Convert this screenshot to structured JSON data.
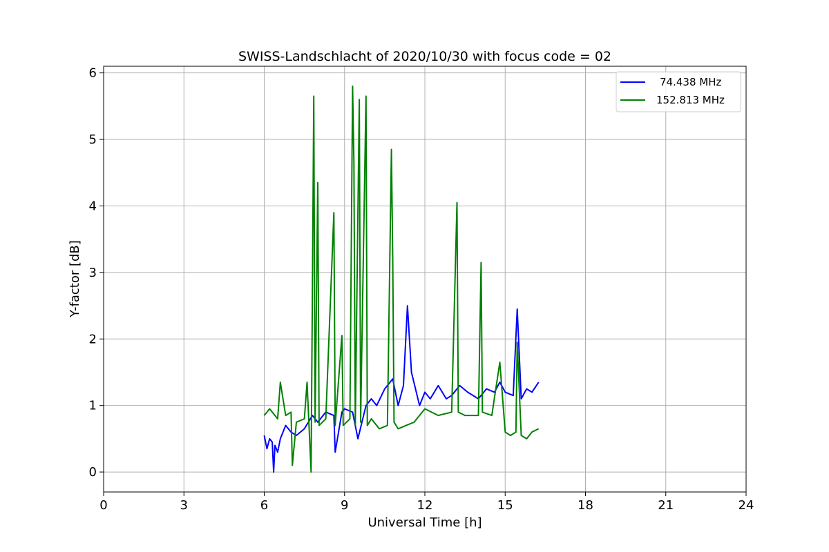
{
  "chart_data": {
    "type": "line",
    "title": "SWISS-Landschlacht of 2020/10/30 with focus code = 02",
    "xlabel": "Universal Time [h]",
    "ylabel": "Y-factor [dB]",
    "xlim": [
      0,
      24
    ],
    "ylim": [
      -0.3,
      6.1
    ],
    "xticks": [
      0,
      3,
      6,
      9,
      12,
      15,
      18,
      21,
      24
    ],
    "yticks": [
      0,
      1,
      2,
      3,
      4,
      5,
      6
    ],
    "grid": true,
    "legend_position": "top-right",
    "series": [
      {
        "name": "74.438 MHz",
        "color": "#0000ff",
        "x": [
          6.0,
          6.1,
          6.2,
          6.3,
          6.35,
          6.4,
          6.5,
          6.6,
          6.8,
          7.0,
          7.2,
          7.5,
          7.8,
          8.0,
          8.3,
          8.6,
          8.65,
          8.9,
          9.0,
          9.3,
          9.5,
          9.8,
          10.0,
          10.2,
          10.5,
          10.8,
          11.0,
          11.2,
          11.35,
          11.5,
          11.8,
          12.0,
          12.2,
          12.5,
          12.8,
          13.0,
          13.3,
          13.6,
          14.0,
          14.3,
          14.6,
          14.8,
          15.0,
          15.3,
          15.45,
          15.6,
          15.8,
          16.0,
          16.25
        ],
        "values": [
          0.55,
          0.35,
          0.5,
          0.45,
          0.0,
          0.4,
          0.3,
          0.5,
          0.7,
          0.6,
          0.55,
          0.65,
          0.85,
          0.75,
          0.9,
          0.85,
          0.3,
          0.9,
          0.95,
          0.9,
          0.5,
          1.0,
          1.1,
          1.0,
          1.25,
          1.4,
          1.0,
          1.3,
          2.5,
          1.5,
          1.0,
          1.2,
          1.1,
          1.3,
          1.1,
          1.15,
          1.3,
          1.2,
          1.1,
          1.25,
          1.2,
          1.35,
          1.2,
          1.15,
          2.45,
          1.1,
          1.25,
          1.2,
          1.35
        ]
      },
      {
        "name": "152.813 MHz",
        "color": "#008000",
        "x": [
          6.0,
          6.2,
          6.5,
          6.6,
          6.8,
          7.0,
          7.05,
          7.2,
          7.5,
          7.6,
          7.75,
          7.8,
          7.85,
          7.9,
          8.0,
          8.05,
          8.3,
          8.6,
          8.65,
          8.9,
          8.95,
          9.2,
          9.3,
          9.35,
          9.4,
          9.55,
          9.6,
          9.8,
          9.85,
          10.0,
          10.3,
          10.6,
          10.75,
          10.8,
          10.85,
          11.0,
          11.3,
          11.6,
          12.0,
          12.5,
          13.0,
          13.2,
          13.25,
          13.5,
          14.0,
          14.1,
          14.15,
          14.5,
          14.8,
          15.0,
          15.2,
          15.4,
          15.45,
          15.6,
          15.8,
          16.0,
          16.25
        ],
        "values": [
          0.85,
          0.95,
          0.8,
          1.35,
          0.85,
          0.9,
          0.1,
          0.75,
          0.8,
          1.35,
          0.0,
          2.85,
          5.65,
          0.75,
          4.35,
          0.7,
          0.8,
          3.9,
          0.7,
          2.05,
          0.7,
          0.8,
          5.8,
          4.65,
          0.7,
          5.6,
          0.75,
          5.65,
          0.7,
          0.8,
          0.65,
          0.7,
          4.85,
          3.2,
          0.75,
          0.65,
          0.7,
          0.75,
          0.95,
          0.85,
          0.9,
          4.05,
          0.9,
          0.85,
          0.85,
          3.15,
          0.9,
          0.85,
          1.65,
          0.6,
          0.55,
          0.6,
          1.95,
          0.55,
          0.5,
          0.6,
          0.65
        ]
      }
    ]
  }
}
